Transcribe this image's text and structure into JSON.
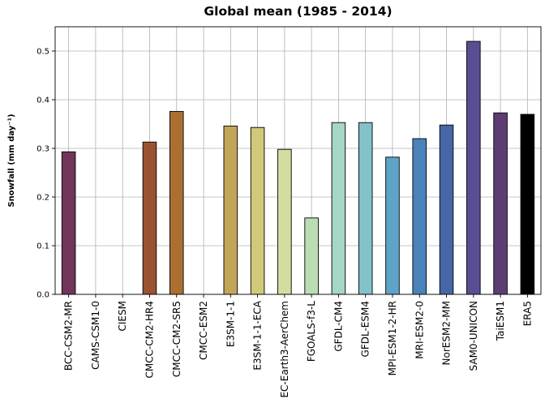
{
  "chart_data": {
    "type": "bar",
    "title": "Global mean (1985 - 2014)",
    "xlabel": "",
    "ylabel": "Snowfall (mm day⁻¹)",
    "ylim": [
      0,
      0.55
    ],
    "yticks": [
      "0.0",
      "0.1",
      "0.2",
      "0.3",
      "0.4",
      "0.5"
    ],
    "grid": true,
    "categories": [
      "BCC-CSM2-MR",
      "CAMS-CSM1-0",
      "CIESM",
      "CMCC-CM2-HR4",
      "CMCC-CM2-SR5",
      "CMCC-ESM2",
      "E3SM-1-1",
      "E3SM-1-1-ECA",
      "EC-Earth3-AerChem",
      "FGOALS-f3-L",
      "GFDL-CM4",
      "GFDL-ESM4",
      "MPI-ESM1-2-HR",
      "MRI-ESM2-0",
      "NorESM2-MM",
      "SAM0-UNICON",
      "TaiESM1",
      "ERA5"
    ],
    "values": [
      0.293,
      null,
      null,
      0.313,
      0.376,
      null,
      0.346,
      0.343,
      0.298,
      0.157,
      0.353,
      0.353,
      0.282,
      0.32,
      0.348,
      0.52,
      0.373,
      0.37
    ],
    "colors": [
      "#72355a",
      null,
      null,
      "#9a5330",
      "#ab7030",
      null,
      "#c2a558",
      "#d1c87a",
      "#d2dda0",
      "#bcdcb4",
      "#a6d6c4",
      "#82c2c8",
      "#5ea3c8",
      "#4a83ba",
      "#4766a8",
      "#5a4e93",
      "#5e3c73",
      "#000000"
    ]
  }
}
